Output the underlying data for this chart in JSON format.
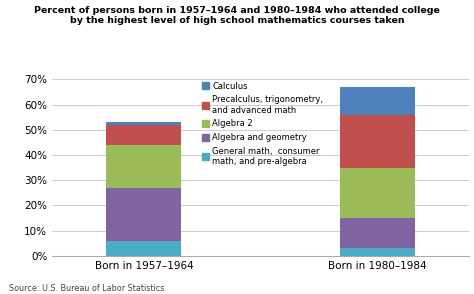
{
  "title_line1": "Percent of persons born in 1957–1964 and 1980–1984 who attended college",
  "title_line2": "by the highest level of high school mathematics courses taken",
  "categories": [
    "Born in 1957–1964",
    "Born in 1980–1984"
  ],
  "series": [
    {
      "label": "General math,  consumer\nmath, and pre-algebra",
      "color": "#4BACC6",
      "values": [
        6,
        3
      ]
    },
    {
      "label": "Algebra and geometry",
      "color": "#8064A2",
      "values": [
        21,
        12
      ]
    },
    {
      "label": "Algebra 2",
      "color": "#9BBB59",
      "values": [
        17,
        20
      ]
    },
    {
      "label": "Precalculus, trigonometry,\nand advanced math",
      "color": "#C0504D",
      "values": [
        8,
        21
      ]
    },
    {
      "label": "Calculus",
      "color": "#4F81BD",
      "values": [
        1,
        11
      ]
    }
  ],
  "ylim": [
    0,
    70
  ],
  "yticks": [
    0,
    10,
    20,
    30,
    40,
    50,
    60,
    70
  ],
  "ytick_labels": [
    "0%",
    "10%",
    "20%",
    "30%",
    "40%",
    "50%",
    "60%",
    "70%"
  ],
  "source": "Source: U.S. Bureau of Labor Statistics",
  "bar_width": 0.18,
  "x_positions": [
    0.22,
    0.78
  ],
  "xlim": [
    0,
    1
  ],
  "background_color": "#FFFFFF",
  "grid_color": "#CCCCCC"
}
